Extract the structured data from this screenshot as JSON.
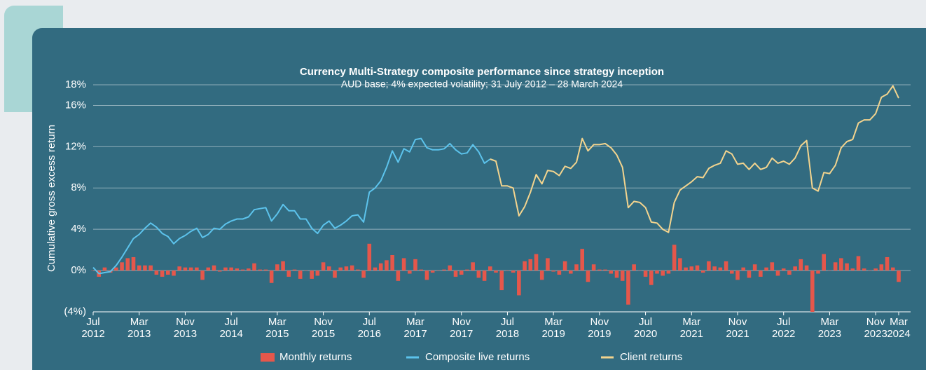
{
  "chart_data": {
    "type": "combo",
    "title": "Currency Multi-Strategy composite performance since strategy inception",
    "subtitle": "AUD base; 4% expected volatility; 31 July 2012 – 28 March 2024",
    "y_label": "Cumulative gross excess return",
    "x": [
      "2012-07",
      "2012-08",
      "2012-09",
      "2012-10",
      "2012-11",
      "2012-12",
      "2013-01",
      "2013-02",
      "2013-03",
      "2013-04",
      "2013-05",
      "2013-06",
      "2013-07",
      "2013-08",
      "2013-09",
      "2013-10",
      "2013-11",
      "2013-12",
      "2014-01",
      "2014-02",
      "2014-03",
      "2014-04",
      "2014-05",
      "2014-06",
      "2014-07",
      "2014-08",
      "2014-09",
      "2014-10",
      "2014-11",
      "2014-12",
      "2015-01",
      "2015-02",
      "2015-03",
      "2015-04",
      "2015-05",
      "2015-06",
      "2015-07",
      "2015-08",
      "2015-09",
      "2015-10",
      "2015-11",
      "2015-12",
      "2016-01",
      "2016-02",
      "2016-03",
      "2016-04",
      "2016-05",
      "2016-06",
      "2016-07",
      "2016-08",
      "2016-09",
      "2016-10",
      "2016-11",
      "2016-12",
      "2017-01",
      "2017-02",
      "2017-03",
      "2017-04",
      "2017-05",
      "2017-06",
      "2017-07",
      "2017-08",
      "2017-09",
      "2017-10",
      "2017-11",
      "2017-12",
      "2018-01",
      "2018-02",
      "2018-03",
      "2018-04",
      "2018-05",
      "2018-06",
      "2018-07",
      "2018-08",
      "2018-09",
      "2018-10",
      "2018-11",
      "2018-12",
      "2019-01",
      "2019-02",
      "2019-03",
      "2019-04",
      "2019-05",
      "2019-06",
      "2019-07",
      "2019-08",
      "2019-09",
      "2019-10",
      "2019-11",
      "2019-12",
      "2020-01",
      "2020-02",
      "2020-03",
      "2020-04",
      "2020-05",
      "2020-06",
      "2020-07",
      "2020-08",
      "2020-09",
      "2020-10",
      "2020-11",
      "2020-12",
      "2021-01",
      "2021-02",
      "2021-03",
      "2021-04",
      "2021-05",
      "2021-06",
      "2021-07",
      "2021-08",
      "2021-09",
      "2021-10",
      "2021-11",
      "2021-12",
      "2022-01",
      "2022-02",
      "2022-03",
      "2022-04",
      "2022-05",
      "2022-06",
      "2022-07",
      "2022-08",
      "2022-09",
      "2022-10",
      "2022-11",
      "2022-12",
      "2023-01",
      "2023-02",
      "2023-03",
      "2023-04",
      "2023-05",
      "2023-06",
      "2023-07",
      "2023-08",
      "2023-09",
      "2023-10",
      "2023-11",
      "2023-12",
      "2024-01",
      "2024-02",
      "2024-03"
    ],
    "xticks": [
      {
        "value": "2012-07",
        "label": [
          "Jul",
          "2012"
        ]
      },
      {
        "value": "2013-03",
        "label": [
          "Mar",
          "2013"
        ]
      },
      {
        "value": "2013-11",
        "label": [
          "Nov",
          "2013"
        ]
      },
      {
        "value": "2014-07",
        "label": [
          "Jul",
          "2014"
        ]
      },
      {
        "value": "2015-03",
        "label": [
          "Mar",
          "2015"
        ]
      },
      {
        "value": "2015-11",
        "label": [
          "Nov",
          "2015"
        ]
      },
      {
        "value": "2016-07",
        "label": [
          "Jul",
          "2016"
        ]
      },
      {
        "value": "2017-03",
        "label": [
          "Mar",
          "2017"
        ]
      },
      {
        "value": "2017-11",
        "label": [
          "Nov",
          "2017"
        ]
      },
      {
        "value": "2018-07",
        "label": [
          "Jul",
          "2018"
        ]
      },
      {
        "value": "2019-03",
        "label": [
          "Mar",
          "2019"
        ]
      },
      {
        "value": "2019-11",
        "label": [
          "Nov",
          "2019"
        ]
      },
      {
        "value": "2020-07",
        "label": [
          "Jul",
          "2020"
        ]
      },
      {
        "value": "2021-03",
        "label": [
          "Mar",
          "2021"
        ]
      },
      {
        "value": "2021-11",
        "label": [
          "Nov",
          "2021"
        ]
      },
      {
        "value": "2022-07",
        "label": [
          "Jul",
          "2022"
        ]
      },
      {
        "value": "2023-03",
        "label": [
          "Mar",
          "2023"
        ]
      },
      {
        "value": "2023-11",
        "label": [
          "Nov",
          "2023"
        ]
      },
      {
        "value": "2024-03",
        "label": [
          "Mar",
          "2024"
        ]
      }
    ],
    "ylim": [
      -4,
      18
    ],
    "yticks": [
      {
        "value": -4,
        "label": "(4%)"
      },
      {
        "value": 0,
        "label": "0%"
      },
      {
        "value": 4,
        "label": "4%"
      },
      {
        "value": 8,
        "label": "8%"
      },
      {
        "value": 12,
        "label": "12%"
      },
      {
        "value": 16,
        "label": "16%"
      },
      {
        "value": 18,
        "label": "18%"
      }
    ],
    "grid": true,
    "legend": "bottom",
    "series": [
      {
        "name": "Monthly returns",
        "type": "bar",
        "color": "#e5574b",
        "values": [
          0.0,
          -0.6,
          0.3,
          -0.2,
          0.3,
          0.8,
          1.2,
          1.3,
          0.5,
          0.5,
          0.5,
          -0.4,
          -0.6,
          -0.4,
          -0.5,
          0.4,
          0.3,
          0.3,
          0.3,
          -0.9,
          0.3,
          0.5,
          -0.1,
          0.3,
          0.3,
          0.2,
          0.1,
          0.2,
          0.7,
          0.1,
          0.1,
          -1.2,
          0.6,
          0.9,
          -0.6,
          0.1,
          -0.8,
          0.0,
          -0.8,
          -0.5,
          0.8,
          0.4,
          -0.7,
          0.3,
          0.4,
          0.5,
          0.1,
          -0.7,
          2.6,
          0.3,
          0.7,
          1.0,
          1.5,
          -1.0,
          1.2,
          -0.3,
          1.1,
          0.1,
          -0.9,
          -0.2,
          0.0,
          0.1,
          0.5,
          -0.6,
          -0.4,
          0.1,
          0.8,
          -0.7,
          -1.0,
          0.4,
          -0.2,
          -1.9,
          0.0,
          -0.2,
          -2.4,
          0.9,
          1.1,
          1.6,
          -0.9,
          1.2,
          -0.1,
          -0.4,
          0.9,
          -0.3,
          0.6,
          2.1,
          -1.1,
          0.6,
          0.1,
          0.1,
          -0.3,
          -0.7,
          -1.0,
          -3.3,
          0.6,
          0.0,
          -0.6,
          -1.4,
          -0.3,
          -0.5,
          -0.3,
          2.5,
          1.2,
          0.3,
          0.4,
          0.5,
          -0.2,
          0.9,
          0.4,
          0.3,
          0.9,
          -0.3,
          -0.9,
          0.3,
          -0.7,
          0.6,
          -0.6,
          0.3,
          0.8,
          -0.5,
          0.2,
          -0.4,
          0.4,
          1.1,
          0.5,
          -4.0,
          -0.3,
          1.6,
          0.0,
          0.8,
          1.2,
          0.7,
          0.2,
          1.4,
          0.2,
          0.0,
          0.2,
          0.6,
          1.3,
          0.3,
          -1.1
        ]
      },
      {
        "name": "Composite live returns",
        "type": "line",
        "color": "#5cc3ec",
        "values": [
          0.3,
          -0.3,
          -0.2,
          -0.1,
          0.5,
          1.3,
          2.2,
          3.1,
          3.5,
          4.1,
          4.6,
          4.2,
          3.6,
          3.3,
          2.6,
          3.1,
          3.4,
          3.8,
          4.1,
          3.2,
          3.5,
          4.1,
          4.0,
          4.5,
          4.8,
          5.0,
          5.0,
          5.2,
          5.9,
          6.0,
          6.1,
          4.8,
          5.5,
          6.4,
          5.8,
          5.8,
          5.0,
          5.0,
          4.1,
          3.6,
          4.4,
          4.8,
          4.1,
          4.4,
          4.8,
          5.3,
          5.4,
          4.7,
          7.6,
          8.0,
          8.7,
          10.0,
          11.6,
          10.5,
          11.8,
          11.5,
          12.7,
          12.8,
          11.9,
          11.7,
          11.7,
          11.8,
          12.3,
          11.7,
          11.3,
          11.4,
          12.2,
          11.5,
          10.4,
          10.8,
          null,
          null,
          null,
          null,
          null,
          null,
          null,
          null,
          null,
          null,
          null,
          null,
          null,
          null,
          null,
          null,
          null,
          null,
          null,
          null,
          null,
          null,
          null,
          null,
          null,
          null,
          null,
          null,
          null,
          null,
          null,
          null,
          null,
          null,
          null,
          null,
          null,
          null,
          null,
          null,
          null,
          null,
          null,
          null,
          null,
          null,
          null,
          null,
          null,
          null,
          null,
          null,
          null,
          null,
          null,
          null,
          null,
          null,
          null,
          null,
          null,
          null,
          null,
          null,
          null,
          null,
          null,
          null,
          null,
          null,
          null
        ]
      },
      {
        "name": "Client returns",
        "type": "line",
        "color": "#f3d48e",
        "values": [
          null,
          null,
          null,
          null,
          null,
          null,
          null,
          null,
          null,
          null,
          null,
          null,
          null,
          null,
          null,
          null,
          null,
          null,
          null,
          null,
          null,
          null,
          null,
          null,
          null,
          null,
          null,
          null,
          null,
          null,
          null,
          null,
          null,
          null,
          null,
          null,
          null,
          null,
          null,
          null,
          null,
          null,
          null,
          null,
          null,
          null,
          null,
          null,
          null,
          null,
          null,
          null,
          null,
          null,
          null,
          null,
          null,
          null,
          null,
          null,
          null,
          null,
          null,
          null,
          null,
          null,
          null,
          null,
          null,
          10.8,
          10.6,
          8.2,
          8.2,
          8.0,
          5.3,
          6.2,
          7.6,
          9.3,
          8.4,
          9.7,
          9.6,
          9.2,
          10.1,
          9.9,
          10.5,
          12.8,
          11.6,
          12.2,
          12.2,
          12.3,
          11.9,
          11.2,
          10.0,
          6.1,
          6.7,
          6.6,
          6.1,
          4.7,
          4.6,
          4.0,
          3.7,
          6.6,
          7.8,
          8.2,
          8.6,
          9.1,
          9.0,
          9.9,
          10.2,
          10.4,
          11.6,
          11.3,
          10.3,
          10.4,
          9.8,
          10.4,
          9.8,
          10.0,
          10.9,
          10.4,
          10.6,
          10.3,
          10.9,
          12.1,
          12.6,
          8.0,
          7.7,
          9.5,
          9.4,
          10.2,
          11.9,
          12.5,
          12.7,
          14.3,
          14.6,
          14.6,
          15.2,
          16.8,
          17.1,
          17.9,
          16.7
        ]
      }
    ]
  }
}
